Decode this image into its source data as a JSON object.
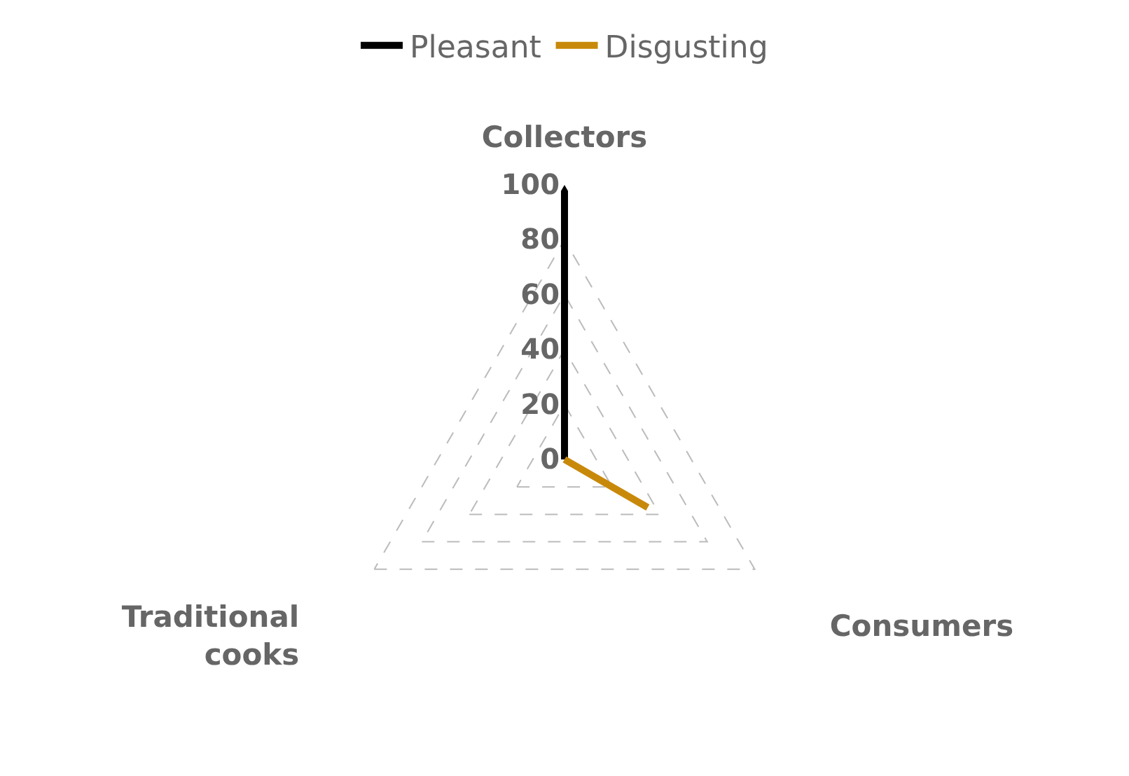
{
  "chart_data": {
    "type": "radar",
    "categories": [
      "Collectors",
      "Consumers",
      "Traditional cooks"
    ],
    "series": [
      {
        "name": "Pleasant",
        "color": "#000000",
        "values": [
          100,
          0,
          0
        ]
      },
      {
        "name": "Disgusting",
        "color": "#c8890a",
        "values": [
          0,
          35,
          0
        ]
      }
    ],
    "ylim": [
      0,
      100
    ],
    "yticks": [
      0,
      20,
      40,
      60,
      80,
      100
    ],
    "grid": true,
    "legend": "top",
    "marker": "none",
    "line_style": "solid"
  }
}
